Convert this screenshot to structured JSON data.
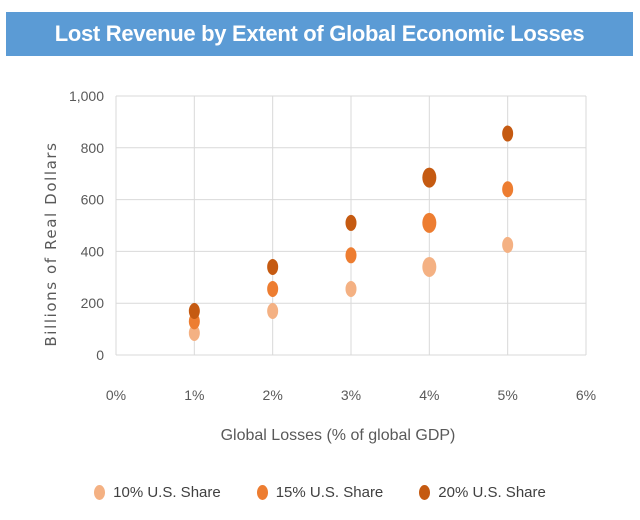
{
  "chart_data": {
    "type": "scatter",
    "title": "Lost Revenue by Extent of Global Economic Losses",
    "xlabel": "Global Losses (% of global GDP)",
    "ylabel": "Billions of Real Dollars",
    "xlim": [
      0,
      6
    ],
    "ylim": [
      0,
      1000
    ],
    "x_ticks": [
      "0%",
      "1%",
      "2%",
      "3%",
      "4%",
      "5%",
      "6%"
    ],
    "y_ticks": [
      "0",
      "200",
      "400",
      "600",
      "800",
      "1,000"
    ],
    "grid": true,
    "legend_position": "bottom",
    "series": [
      {
        "name": "10% U.S. Share",
        "color": "#F4B183",
        "x": [
          1,
          2,
          3,
          4,
          5
        ],
        "y": [
          85,
          170,
          255,
          340,
          425
        ]
      },
      {
        "name": "15% U.S. Share",
        "color": "#ED7D31",
        "x": [
          1,
          2,
          3,
          4,
          5
        ],
        "y": [
          130,
          255,
          385,
          510,
          640
        ]
      },
      {
        "name": "20% U.S. Share",
        "color": "#C55A11",
        "x": [
          1,
          2,
          3,
          4,
          5
        ],
        "y": [
          170,
          340,
          510,
          685,
          855
        ]
      }
    ]
  }
}
